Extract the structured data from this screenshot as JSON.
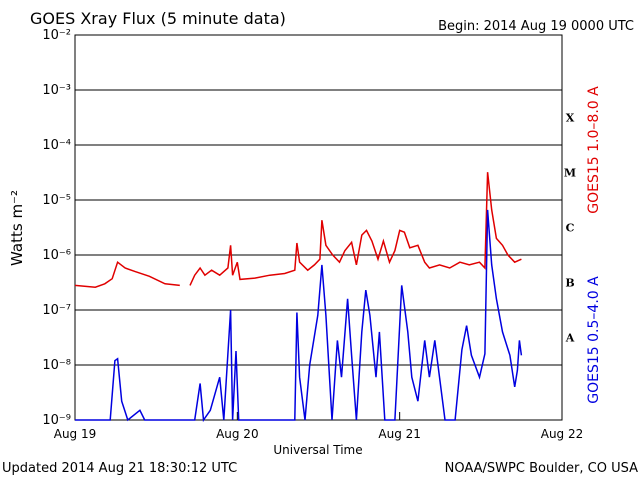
{
  "chart_data": {
    "type": "line",
    "title": "GOES Xray Flux (5 minute data)",
    "subtitle": "Begin:  2014 Aug 19 0000 UTC",
    "x_label": "Universal Time",
    "y_label": "Watts m⁻²",
    "footer_left": "Updated 2014 Aug 21 18:30:12 UTC",
    "footer_right": "NOAA/SWPC Boulder, CO USA",
    "class_labels": [
      "X",
      "M",
      "C",
      "B",
      "A"
    ],
    "ylog": true,
    "grid": true,
    "xlim": [
      0,
      72
    ],
    "xticks": [
      {
        "value": 0,
        "label": "Aug 19"
      },
      {
        "value": 24,
        "label": "Aug 20"
      },
      {
        "value": 48,
        "label": "Aug 21"
      },
      {
        "value": 72,
        "label": "Aug 22"
      }
    ],
    "ylim": [
      1e-09,
      0.01
    ],
    "yticks": [
      {
        "value": 1e-09,
        "label": "10⁻⁹"
      },
      {
        "value": 1e-08,
        "label": "10⁻⁸"
      },
      {
        "value": 1e-07,
        "label": "10⁻⁷"
      },
      {
        "value": 1e-06,
        "label": "10⁻⁶"
      },
      {
        "value": 1e-05,
        "label": "10⁻⁵"
      },
      {
        "value": 0.0001,
        "label": "10⁻⁴"
      },
      {
        "value": 0.001,
        "label": "10⁻³"
      },
      {
        "value": 0.01,
        "label": "10⁻²"
      }
    ],
    "series": [
      {
        "name": "GOES15 1.0–8.0 A",
        "color": "#e00000",
        "x": [
          0,
          3,
          4.4,
          5.5,
          6.3,
          7.4,
          8.9,
          11,
          13.3,
          15.5,
          16.2,
          17,
          17.7,
          18.5,
          19.2,
          20.2,
          21.4,
          22.6,
          23,
          23.3,
          24,
          24.4,
          26.6,
          28.8,
          31,
          32.5,
          32.8,
          33.2,
          34.4,
          35.4,
          36.2,
          36.5,
          37.1,
          38.1,
          39.1,
          39.9,
          40.9,
          41.6,
          42.4,
          43.1,
          43.9,
          44.8,
          45.6,
          46.5,
          47.3,
          48,
          48.7,
          49.5,
          50.7,
          51.7,
          52.4,
          53.9,
          55.4,
          56.9,
          58.3,
          59.8,
          60.6,
          61,
          61.6,
          62.3,
          63.2,
          64,
          65,
          66
        ],
        "values": [
          2.8e-07,
          2.6e-07,
          3e-07,
          3.7e-07,
          7.4e-07,
          5.8e-07,
          5e-07,
          4.1e-07,
          3e-07,
          2.8e-07,
          null,
          2.8e-07,
          4.3e-07,
          5.8e-07,
          4.3e-07,
          5.3e-07,
          4.3e-07,
          5.8e-07,
          1.5e-06,
          4.3e-07,
          7.4e-07,
          3.6e-07,
          3.8e-07,
          4.3e-07,
          4.6e-07,
          5.3e-07,
          1.65e-06,
          7.4e-07,
          5.3e-07,
          6.6e-07,
          8.4e-07,
          4.3e-06,
          1.5e-06,
          1e-06,
          7.4e-07,
          1.2e-06,
          1.7e-06,
          6.6e-07,
          2.3e-06,
          2.8e-06,
          1.8e-06,
          8.4e-07,
          1.8e-06,
          7.4e-07,
          1.2e-06,
          2.8e-06,
          2.6e-06,
          1.35e-06,
          1.5e-06,
          7.4e-07,
          5.8e-07,
          6.6e-07,
          5.8e-07,
          7.4e-07,
          6.6e-07,
          7.4e-07,
          5.8e-07,
          3.2e-05,
          6.6e-06,
          2e-06,
          1.5e-06,
          1e-06,
          7.4e-07,
          8.4e-07
        ]
      },
      {
        "name": "GOES15 0.5–4.0 A",
        "color": "#0000e0",
        "x": [
          0,
          5.2,
          5.9,
          6.3,
          6.9,
          7.8,
          9.6,
          10.3,
          17.7,
          18.5,
          19,
          20,
          21.4,
          22,
          23,
          23.3,
          23.8,
          24.2,
          32.5,
          32.8,
          33.2,
          34,
          34.7,
          35.9,
          36.5,
          37.1,
          38,
          38.8,
          39.4,
          40.3,
          40.9,
          41.6,
          42.4,
          43,
          43.6,
          44.5,
          45,
          45.8,
          47.3,
          48.3,
          49.2,
          49.8,
          50.7,
          51.7,
          52.4,
          53.2,
          54.7,
          56.2,
          57.2,
          57.9,
          58.6,
          59.8,
          60.6,
          61,
          61.6,
          62.3,
          63.2,
          64.3,
          65,
          65.4,
          65.7,
          66
        ],
        "values": [
          1e-09,
          1e-09,
          1.2e-08,
          1.3e-08,
          2.2e-09,
          1e-09,
          1.5e-09,
          1e-09,
          1e-09,
          4.6e-09,
          1e-09,
          1.5e-09,
          6e-09,
          1e-09,
          1e-07,
          1e-09,
          1.8e-08,
          1e-09,
          1e-09,
          9e-08,
          6e-09,
          1e-09,
          1e-08,
          8e-08,
          6.6e-07,
          8e-08,
          1e-09,
          2.8e-08,
          6e-09,
          1.6e-07,
          1.5e-08,
          1e-09,
          4e-08,
          2.3e-07,
          8e-08,
          6e-09,
          4e-08,
          1e-09,
          1e-09,
          2.8e-07,
          4e-08,
          6e-09,
          2.2e-09,
          2.8e-08,
          6e-09,
          2.8e-08,
          1e-09,
          1e-09,
          1.9e-08,
          5.2e-08,
          1.5e-08,
          6e-09,
          1.6e-08,
          6.6e-06,
          6.6e-07,
          1.6e-07,
          4e-08,
          1.5e-08,
          4e-09,
          8e-09,
          2.8e-08,
          1.5e-08
        ]
      }
    ]
  }
}
